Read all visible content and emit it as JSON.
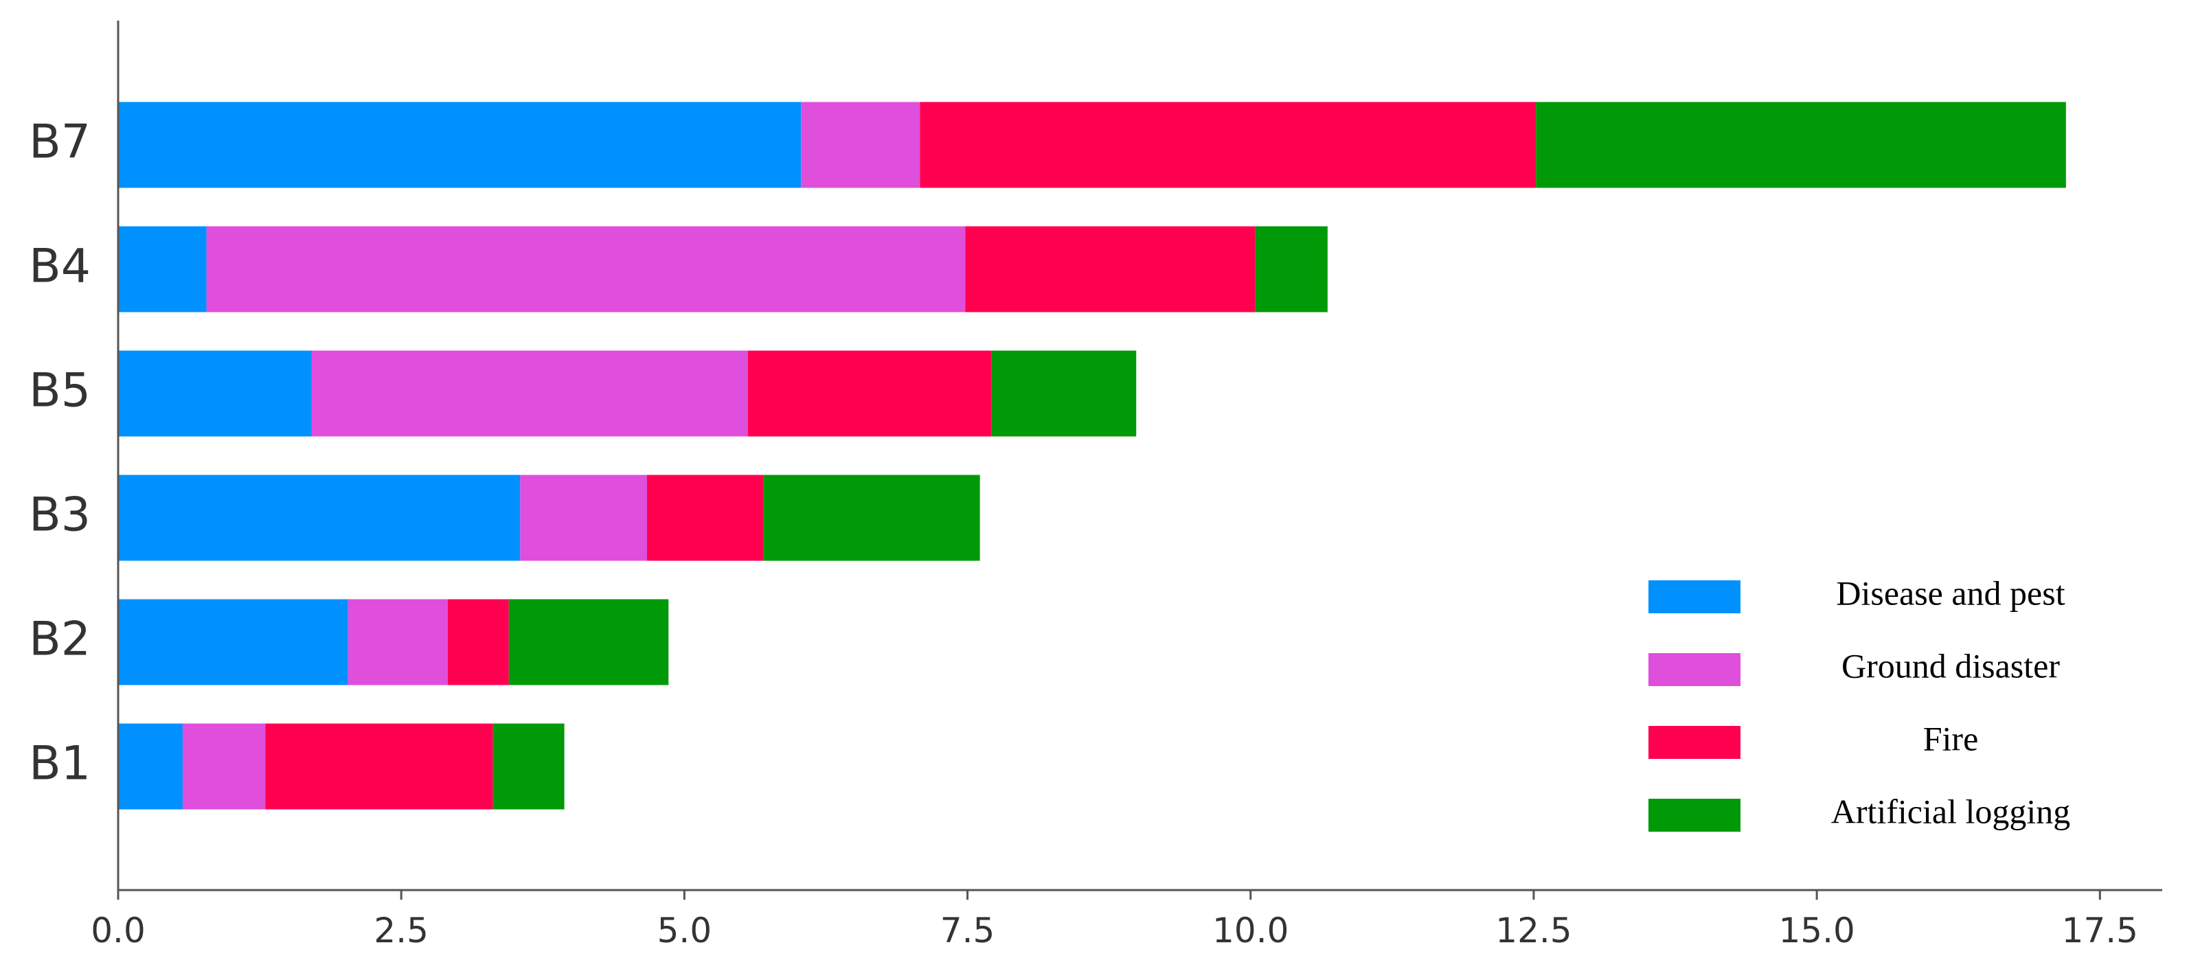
{
  "chart_data": {
    "type": "bar",
    "orientation": "horizontal",
    "stacked": true,
    "categories": [
      "B7",
      "B4",
      "B5",
      "B3",
      "B2",
      "B1"
    ],
    "series": [
      {
        "name": "Disease and pest",
        "color": "#0091FF",
        "values": [
          6.03,
          0.78,
          1.71,
          3.55,
          2.03,
          0.57
        ]
      },
      {
        "name": "Ground disaster",
        "color": "#E04EDC",
        "values": [
          1.05,
          6.7,
          3.85,
          1.12,
          0.88,
          0.73
        ]
      },
      {
        "name": "Fire",
        "color": "#FF0050",
        "values": [
          5.44,
          2.56,
          2.15,
          1.03,
          0.54,
          2.01
        ]
      },
      {
        "name": "Artificial logging",
        "color": "#009A08",
        "values": [
          4.68,
          0.64,
          1.28,
          1.91,
          1.41,
          0.63
        ]
      }
    ],
    "xlim": [
      0,
      18.05
    ],
    "xticks": [
      "0.0",
      "2.5",
      "5.0",
      "7.5",
      "10.0",
      "12.5",
      "15.0",
      "17.5"
    ],
    "xtick_values": [
      0,
      2.5,
      5,
      7.5,
      10,
      12.5,
      15,
      17.5
    ],
    "legend_position": "bottom-right",
    "grid": false
  }
}
